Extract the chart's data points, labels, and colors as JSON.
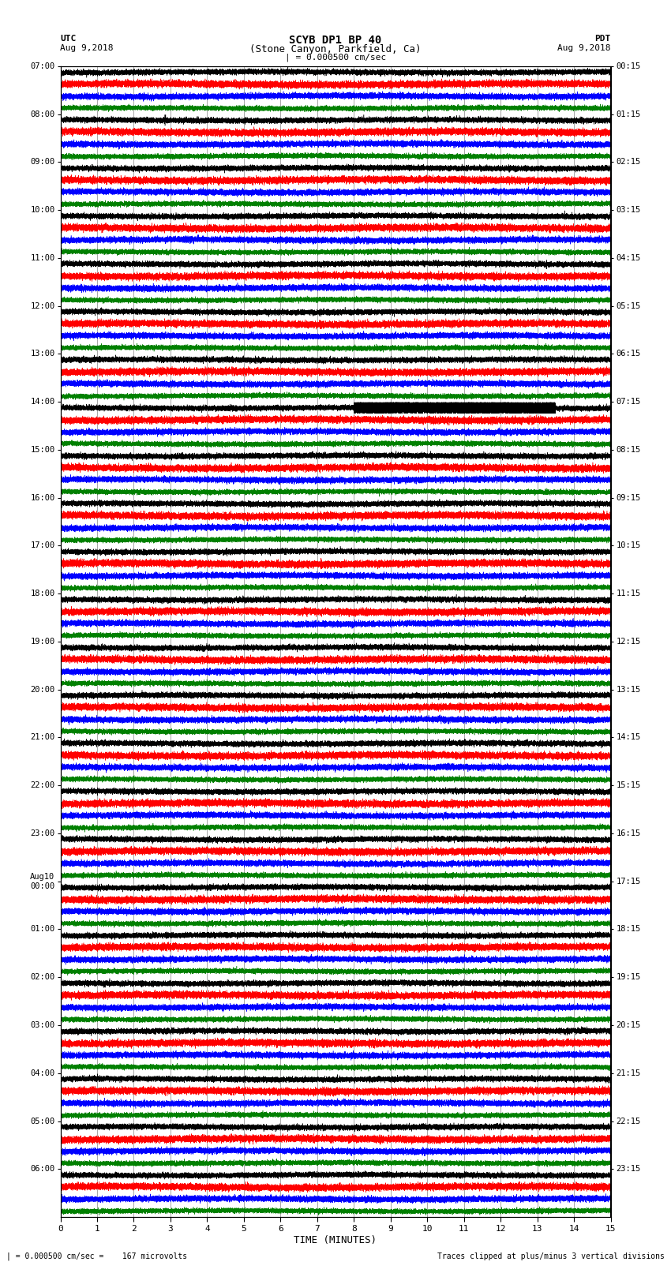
{
  "title_line1": "SCYB DP1 BP 40",
  "title_line2": "(Stone Canyon, Parkfield, Ca)",
  "scale_text": "| = 0.000500 cm/sec",
  "left_label": "UTC",
  "left_date": "Aug 9,2018",
  "right_label": "PDT",
  "right_date": "Aug 9,2018",
  "bottom_xlabel": "TIME (MINUTES)",
  "bottom_note_left": "| = 0.000500 cm/sec =    167 microvolts",
  "bottom_note_right": "Traces clipped at plus/minus 3 vertical divisions",
  "xlabel_ticks": [
    0,
    1,
    2,
    3,
    4,
    5,
    6,
    7,
    8,
    9,
    10,
    11,
    12,
    13,
    14,
    15
  ],
  "utc_labels": [
    "07:00",
    "08:00",
    "09:00",
    "10:00",
    "11:00",
    "12:00",
    "13:00",
    "14:00",
    "15:00",
    "16:00",
    "17:00",
    "18:00",
    "19:00",
    "20:00",
    "21:00",
    "22:00",
    "23:00",
    "Aug10\n00:00",
    "01:00",
    "02:00",
    "03:00",
    "04:00",
    "05:00",
    "06:00"
  ],
  "pdt_labels": [
    "00:15",
    "01:15",
    "02:15",
    "03:15",
    "04:15",
    "05:15",
    "06:15",
    "07:15",
    "08:15",
    "09:15",
    "10:15",
    "11:15",
    "12:15",
    "13:15",
    "14:15",
    "15:15",
    "16:15",
    "17:15",
    "18:15",
    "19:15",
    "20:15",
    "21:15",
    "22:15",
    "23:15"
  ],
  "colors": [
    "black",
    "red",
    "blue",
    "green"
  ],
  "n_rows": 24,
  "traces_per_row": 4,
  "minutes": 15,
  "sample_rate": 40,
  "bg_color": "#ffffff",
  "grid_color": "#999999",
  "figsize": [
    8.5,
    16.13
  ],
  "dpi": 100
}
